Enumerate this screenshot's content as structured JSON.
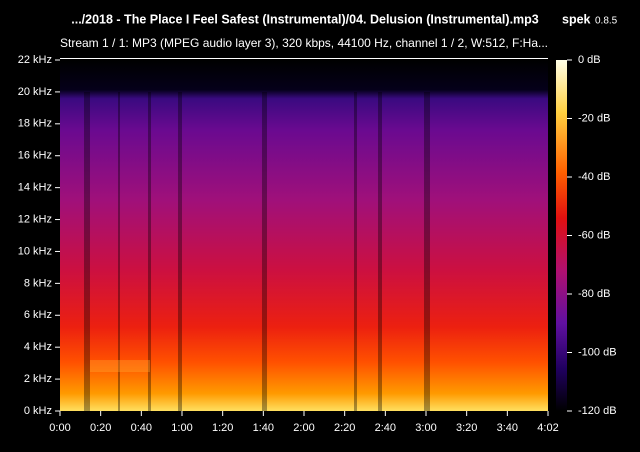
{
  "header": {
    "title": ".../2018 - The Place I Feel Safest (Instrumental)/04. Delusion (Instrumental).mp3",
    "app_name": "spek",
    "app_version": "0.8.5",
    "stream_info": "Stream 1 / 1: MP3 (MPEG audio layer 3), 320 kbps, 44100 Hz, channel 1 / 2, W:512, F:Ha..."
  },
  "frequency_axis": {
    "labels": [
      "22 kHz",
      "20 kHz",
      "18 kHz",
      "16 kHz",
      "14 kHz",
      "12 kHz",
      "10 kHz",
      "8 kHz",
      "6 kHz",
      "4 kHz",
      "2 kHz",
      "0 kHz"
    ]
  },
  "time_axis": {
    "labels": [
      "0:00",
      "0:20",
      "0:40",
      "1:00",
      "1:20",
      "1:40",
      "2:00",
      "2:20",
      "2:40",
      "3:00",
      "3:20",
      "3:40",
      "4:02"
    ]
  },
  "level_scale": {
    "labels": [
      "0 dB",
      "-20 dB",
      "-40 dB",
      "-60 dB",
      "-80 dB",
      "-100 dB",
      "-120 dB"
    ]
  }
}
